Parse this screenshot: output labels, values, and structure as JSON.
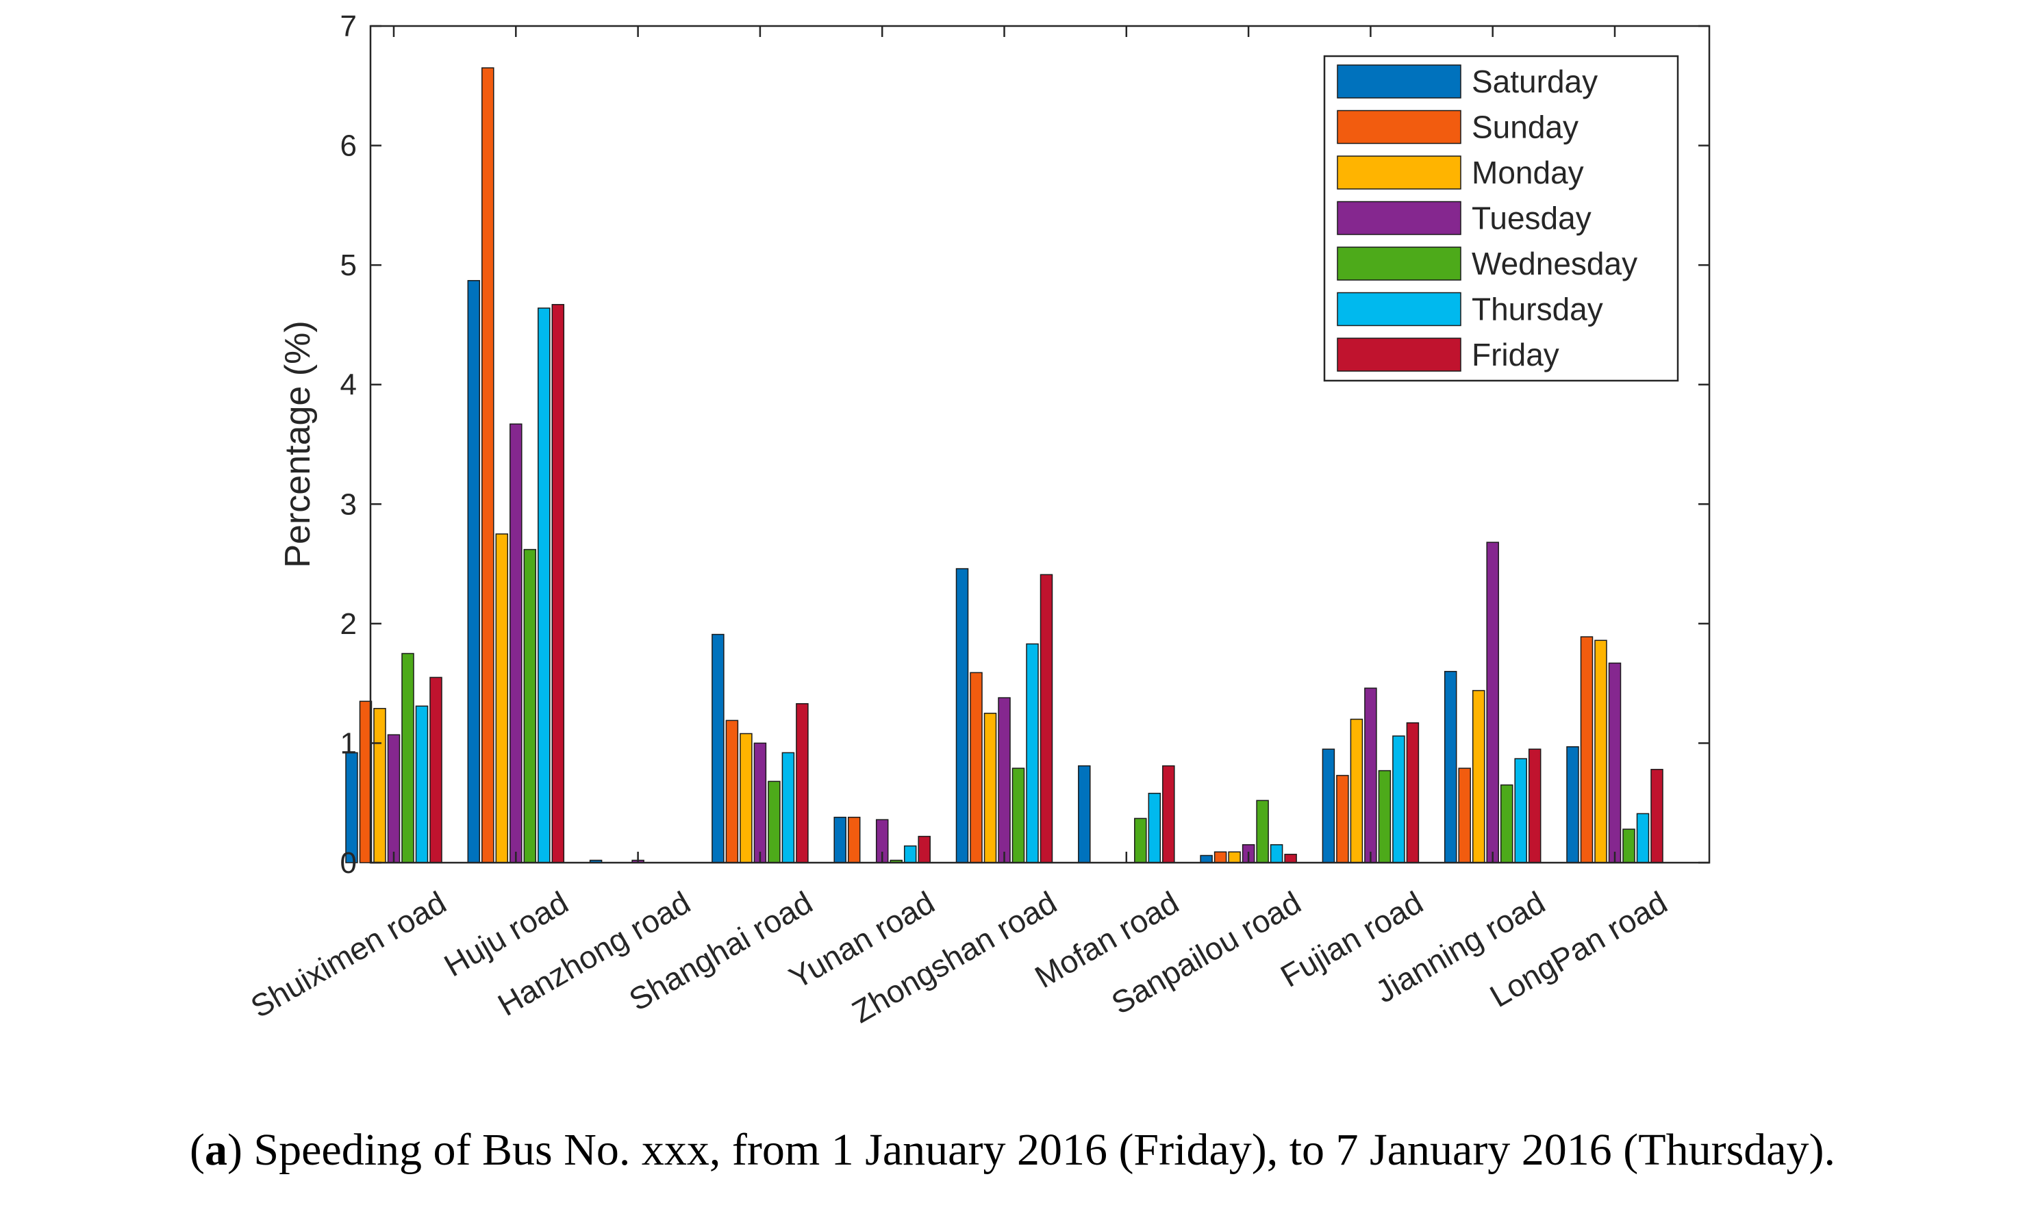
{
  "chart_data": {
    "type": "bar",
    "title": "",
    "xlabel": "",
    "ylabel": "Percentage (%)",
    "ylim": [
      0,
      7
    ],
    "yticks": [
      0,
      1,
      2,
      3,
      4,
      5,
      6,
      7
    ],
    "grid": false,
    "legend_position": "top-right",
    "categories": [
      "Shuiximen road",
      "Huju road",
      "Hanzhong road",
      "Shanghai road",
      "Yunan road",
      "Zhongshan road",
      "Mofan road",
      "Sanpailou road",
      "Fujian road",
      "Jianning road",
      "LongPan road"
    ],
    "series": [
      {
        "name": "Saturday",
        "color": "#0072BD",
        "values": [
          0.92,
          4.87,
          0.02,
          1.91,
          0.38,
          2.46,
          0.81,
          0.06,
          0.95,
          1.6,
          0.97
        ]
      },
      {
        "name": "Sunday",
        "color": "#F25C0F",
        "values": [
          1.35,
          6.65,
          0,
          1.19,
          0.38,
          1.59,
          0,
          0.09,
          0.73,
          0.79,
          1.89
        ]
      },
      {
        "name": "Monday",
        "color": "#FFB400",
        "values": [
          1.29,
          2.75,
          0,
          1.08,
          0,
          1.25,
          0,
          0.09,
          1.2,
          1.44,
          1.86
        ]
      },
      {
        "name": "Tuesday",
        "color": "#85278F",
        "values": [
          1.07,
          3.67,
          0.02,
          1.0,
          0.36,
          1.38,
          0,
          0.15,
          1.46,
          2.68,
          1.67
        ]
      },
      {
        "name": "Wednesday",
        "color": "#4DAA1A",
        "values": [
          1.75,
          2.62,
          0,
          0.68,
          0.02,
          0.79,
          0.37,
          0.52,
          0.77,
          0.65,
          0.28
        ]
      },
      {
        "name": "Thursday",
        "color": "#00B9EE",
        "values": [
          1.31,
          4.64,
          0,
          0.92,
          0.14,
          1.83,
          0.58,
          0.15,
          1.06,
          0.87,
          0.41
        ]
      },
      {
        "name": "Friday",
        "color": "#C0132E",
        "values": [
          1.55,
          4.67,
          0,
          1.33,
          0.22,
          2.41,
          0.81,
          0.07,
          1.17,
          0.95,
          0.78
        ]
      }
    ]
  },
  "caption": {
    "label": "a",
    "text": "Speeding of Bus No. xxx, from 1 January 2016 (Friday), to 7 January 2016 (Thursday)."
  }
}
